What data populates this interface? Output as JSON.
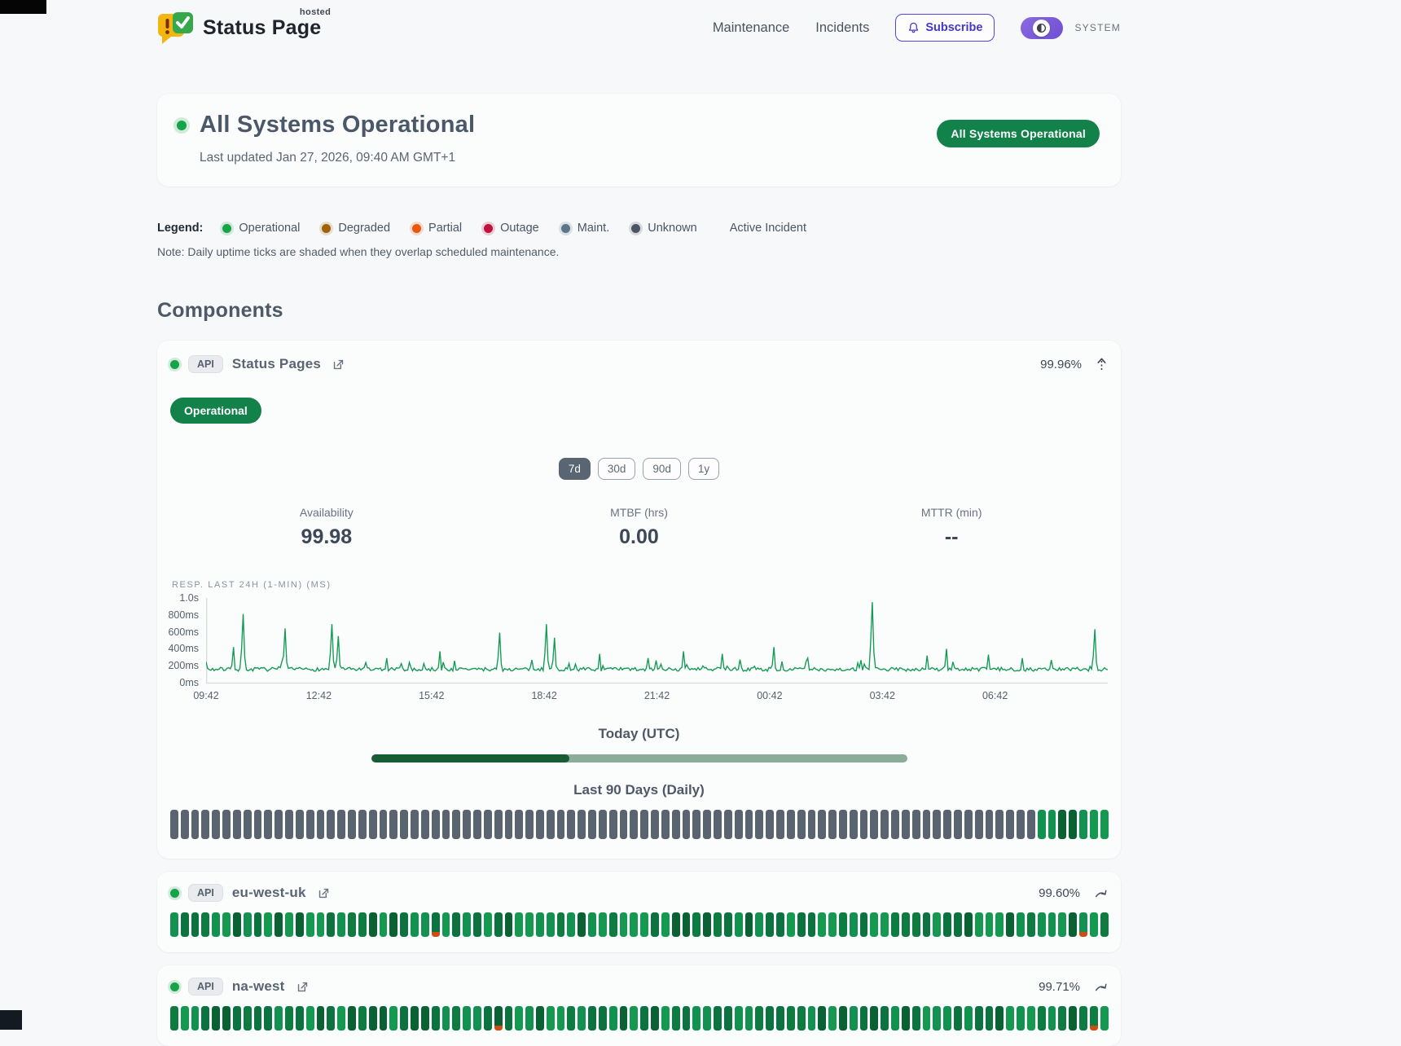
{
  "header": {
    "brand": {
      "name": "Status Page",
      "superscript": "hosted"
    },
    "nav": [
      "Maintenance",
      "Incidents"
    ],
    "subscribe": {
      "label": "Subscribe"
    },
    "theme": {
      "label": "SYSTEM"
    }
  },
  "hero": {
    "title": "All Systems Operational",
    "last_updated": "Last updated Jan 27, 2026, 09:40 AM GMT+1",
    "badge": "All Systems Operational"
  },
  "legend": {
    "label": "Legend:",
    "items": [
      {
        "label": "Operational",
        "color": "#16a34a"
      },
      {
        "label": "Degraded",
        "color": "#a16207"
      },
      {
        "label": "Partial",
        "color": "#ea580c"
      },
      {
        "label": "Outage",
        "color": "#be123c"
      },
      {
        "label": "Maint.",
        "color": "#5b7689"
      },
      {
        "label": "Unknown",
        "color": "#4b5563"
      }
    ],
    "active_incident_label": "Active Incident",
    "note": "Note: Daily uptime ticks are shaded when they overlap scheduled maintenance."
  },
  "components": {
    "title": "Components",
    "items": [
      {
        "type": "expanded",
        "tag": "API",
        "name": "Status Pages",
        "uptime": "99.96%",
        "status": "Operational",
        "ranges": [
          {
            "label": "7d",
            "active": true
          },
          {
            "label": "30d",
            "active": false
          },
          {
            "label": "90d",
            "active": false
          },
          {
            "label": "1y",
            "active": false
          }
        ],
        "stats": [
          {
            "label": "Availability",
            "value": "99.98"
          },
          {
            "label": "MTBF (hrs)",
            "value": "0.00"
          },
          {
            "label": "MTTR (min)",
            "value": "--"
          }
        ],
        "today": {
          "label": "Today (UTC)",
          "progress": 0.37
        },
        "history": {
          "label": "Last 90 Days (Daily)",
          "days": 90,
          "green_tail": 7
        }
      },
      {
        "type": "collapsed",
        "tag": "API",
        "name": "eu-west-uk",
        "uptime": "99.60%",
        "days": 90,
        "incident_ticks": [
          25,
          87
        ]
      },
      {
        "type": "collapsed",
        "tag": "API",
        "name": "na-west",
        "uptime": "99.71%",
        "days": 90,
        "incident_ticks": [
          31,
          88
        ]
      }
    ]
  },
  "chart_data": {
    "type": "line",
    "title": "RESP. LAST 24H (1-MIN) (MS)",
    "x_ticks": [
      "09:42",
      "12:42",
      "15:42",
      "18:42",
      "21:42",
      "00:42",
      "03:42",
      "06:42"
    ],
    "y_ticks": [
      "1.0s",
      "800ms",
      "600ms",
      "400ms",
      "200ms",
      "0ms"
    ],
    "ylim": [
      0,
      1000
    ],
    "baseline_range_ms": [
      145,
      210
    ],
    "line_color": "#149a55",
    "axis_color": "#d7dbdf",
    "spikes": [
      {
        "x": 0.031,
        "v": 430
      },
      {
        "x": 0.042,
        "v": 820
      },
      {
        "x": 0.088,
        "v": 650
      },
      {
        "x": 0.139,
        "v": 700
      },
      {
        "x": 0.146,
        "v": 560
      },
      {
        "x": 0.2,
        "v": 300
      },
      {
        "x": 0.26,
        "v": 380
      },
      {
        "x": 0.325,
        "v": 600
      },
      {
        "x": 0.378,
        "v": 700
      },
      {
        "x": 0.386,
        "v": 540
      },
      {
        "x": 0.437,
        "v": 350
      },
      {
        "x": 0.49,
        "v": 300
      },
      {
        "x": 0.53,
        "v": 380
      },
      {
        "x": 0.572,
        "v": 350
      },
      {
        "x": 0.63,
        "v": 430
      },
      {
        "x": 0.667,
        "v": 300
      },
      {
        "x": 0.739,
        "v": 960
      },
      {
        "x": 0.8,
        "v": 330
      },
      {
        "x": 0.821,
        "v": 410
      },
      {
        "x": 0.868,
        "v": 340
      },
      {
        "x": 0.905,
        "v": 300
      },
      {
        "x": 0.985,
        "v": 640
      }
    ]
  },
  "palette": {
    "greens": [
      "#0e7c41",
      "#0a6234",
      "#129150",
      "#0c7340",
      "#15984f"
    ],
    "gray_tick": "#5a6370",
    "incident": "#cc4e13"
  }
}
